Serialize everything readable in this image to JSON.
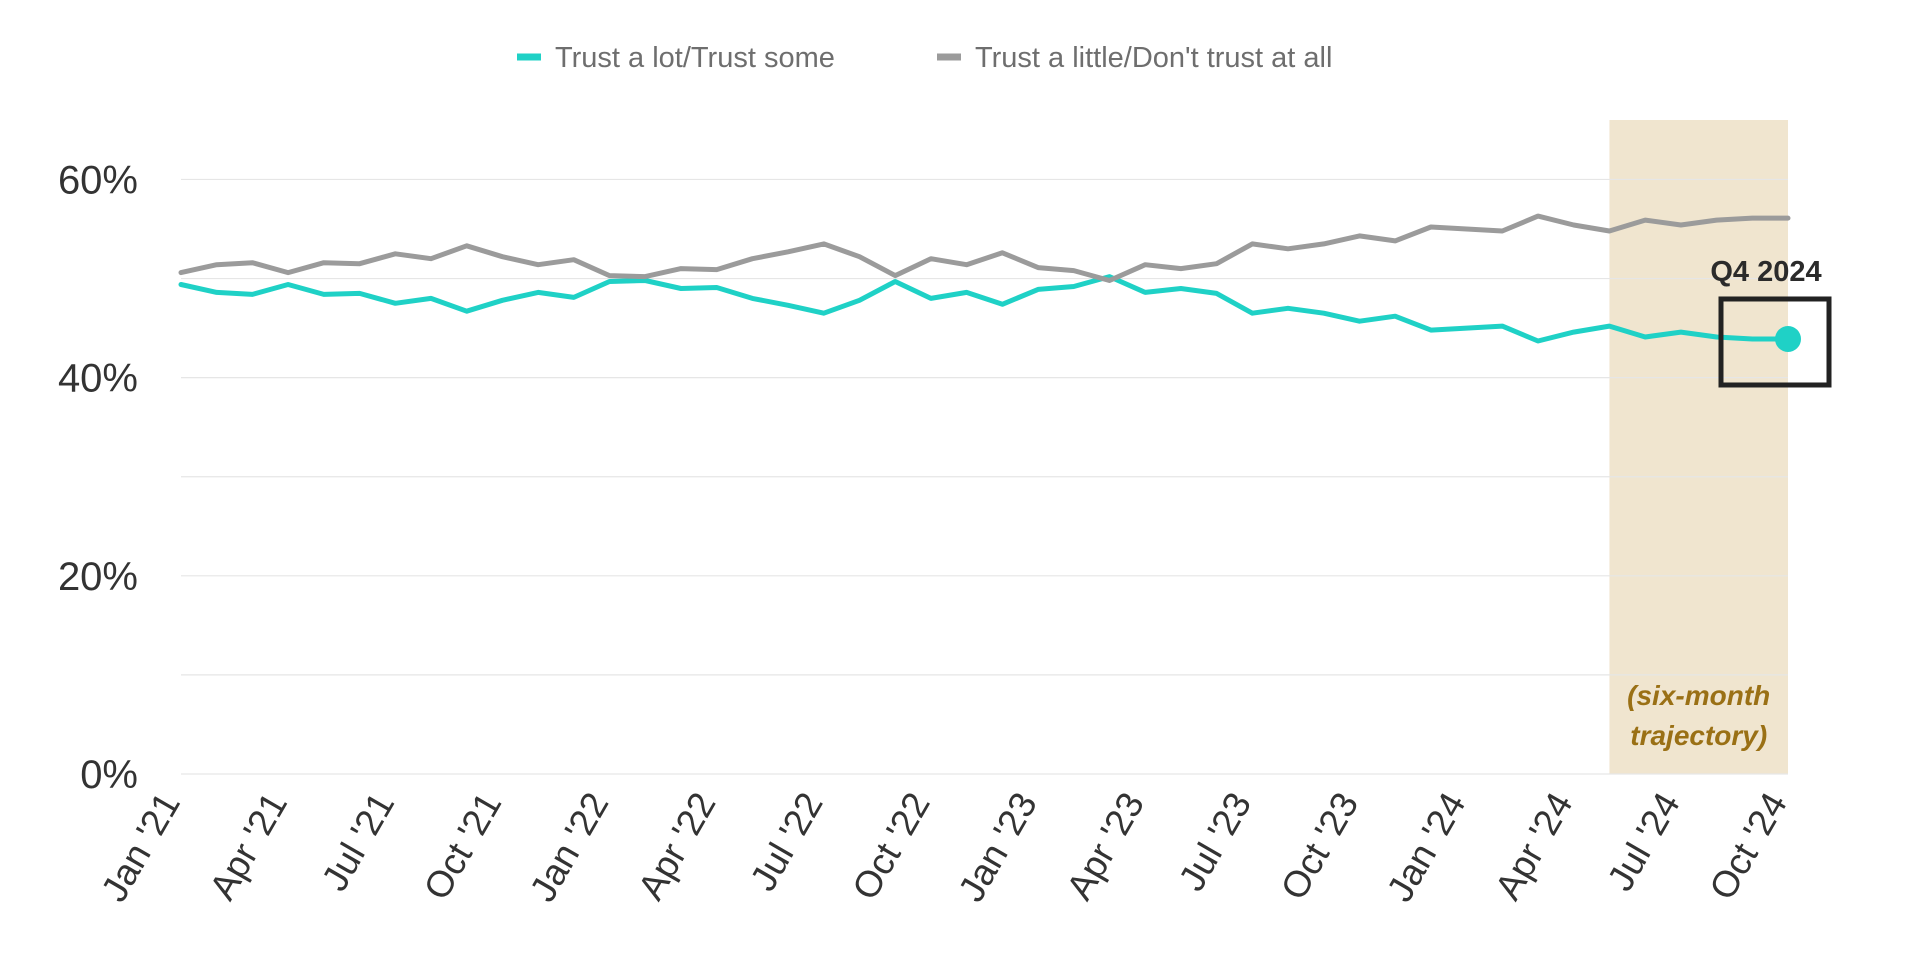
{
  "chart_data": {
    "type": "line",
    "x": [
      "Jan '21",
      "Feb '21",
      "Mar '21",
      "Apr '21",
      "May '21",
      "Jun '21",
      "Jul '21",
      "Aug '21",
      "Sep '21",
      "Oct '21",
      "Nov '21",
      "Dec '21",
      "Jan '22",
      "Feb '22",
      "Mar '22",
      "Apr '22",
      "May '22",
      "Jun '22",
      "Jul '22",
      "Aug '22",
      "Sep '22",
      "Oct '22",
      "Nov '22",
      "Dec '22",
      "Jan '23",
      "Feb '23",
      "Mar '23",
      "Apr '23",
      "May '23",
      "Jun '23",
      "Jul '23",
      "Aug '23",
      "Sep '23",
      "Oct '23",
      "Nov '23",
      "Dec '23",
      "Jan '24",
      "Feb '24",
      "Mar '24",
      "Apr '24",
      "May '24",
      "Jun '24",
      "Jul '24",
      "Aug '24",
      "Sep '24",
      "Oct '24"
    ],
    "x_tick_labels": [
      "Jan '21",
      "Apr '21",
      "Jul '21",
      "Oct '21",
      "Jan '22",
      "Apr '22",
      "Jul '22",
      "Oct '22",
      "Jan '23",
      "Apr '23",
      "Jul '23",
      "Oct '23",
      "Jan '24",
      "Apr '24",
      "Jul '24",
      "Oct '24"
    ],
    "series": [
      {
        "name": "Trust a lot/Trust some",
        "color": "#1fd1c6",
        "values": [
          49.4,
          48.6,
          48.4,
          49.4,
          48.4,
          48.5,
          47.5,
          48.0,
          46.7,
          47.8,
          48.6,
          48.1,
          49.7,
          49.8,
          49.0,
          49.1,
          48.0,
          47.3,
          46.5,
          47.8,
          49.7,
          48.0,
          48.6,
          47.4,
          48.9,
          49.2,
          50.2,
          48.6,
          49.0,
          48.5,
          46.5,
          47.0,
          46.5,
          45.7,
          46.2,
          44.8,
          45.0,
          45.2,
          43.7,
          44.6,
          45.2,
          44.1,
          44.6,
          44.1,
          43.9,
          43.9
        ]
      },
      {
        "name": "Trust a little/Don't trust at all",
        "color": "#9b9b9b",
        "values": [
          50.6,
          51.4,
          51.6,
          50.6,
          51.6,
          51.5,
          52.5,
          52.0,
          53.3,
          52.2,
          51.4,
          51.9,
          50.3,
          50.2,
          51.0,
          50.9,
          52.0,
          52.7,
          53.5,
          52.2,
          50.3,
          52.0,
          51.4,
          52.6,
          51.1,
          50.8,
          49.8,
          51.4,
          51.0,
          51.5,
          53.5,
          53.0,
          53.5,
          54.3,
          53.8,
          55.2,
          55.0,
          54.8,
          56.3,
          55.4,
          54.8,
          55.9,
          55.4,
          55.9,
          56.1,
          56.1
        ]
      }
    ],
    "y_ticks": [
      "0%",
      "20%",
      "40%",
      "60%"
    ],
    "ylim": [
      0,
      66
    ],
    "y_gridlines": [
      0,
      10,
      20,
      30,
      40,
      50,
      60
    ],
    "grid": true,
    "legend_position": "top-center",
    "highlight_region": {
      "start_index": 40,
      "end_index": 45,
      "note_lines": [
        "(six-month",
        "trajectory)"
      ],
      "fill": "#f0e5cf",
      "note_color": "#9a7015"
    },
    "callout": {
      "label": "Q4 2024",
      "series_index": 0,
      "point_index": 45
    },
    "title": "",
    "xlabel": "",
    "ylabel": ""
  }
}
